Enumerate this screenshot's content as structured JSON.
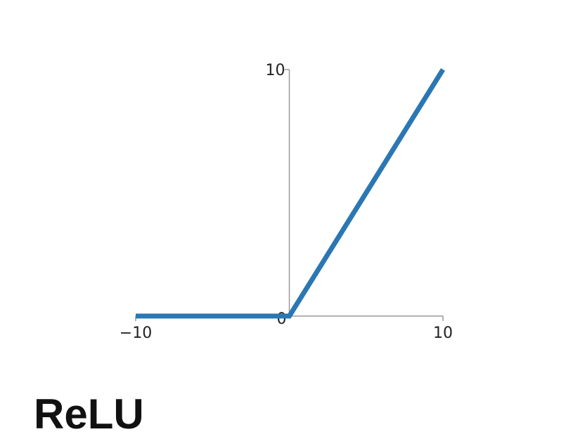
{
  "caption": "ReLU",
  "chart_data": {
    "type": "line",
    "title": "",
    "xlabel": "",
    "ylabel": "",
    "xlim": [
      -10,
      10
    ],
    "ylim": [
      0,
      10
    ],
    "x_ticks": [
      {
        "value": -10,
        "label": "−10"
      },
      {
        "value": 0,
        "label": "0"
      },
      {
        "value": 10,
        "label": "10"
      }
    ],
    "y_ticks": [
      {
        "value": 10,
        "label": "10"
      }
    ],
    "grid": false,
    "series": [
      {
        "color": "#2b77b3",
        "points": [
          [
            -10,
            0
          ],
          [
            0,
            0
          ],
          [
            10,
            10
          ]
        ]
      }
    ]
  }
}
